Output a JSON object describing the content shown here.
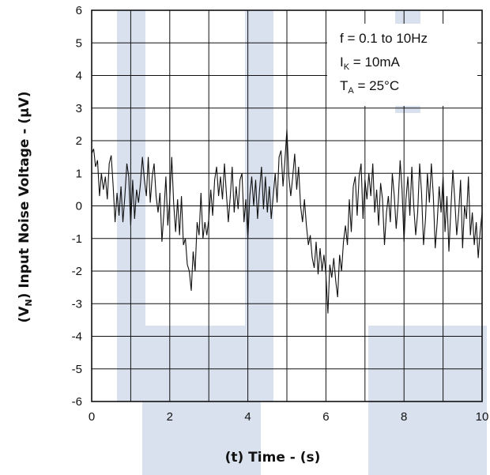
{
  "chart_data": {
    "type": "line",
    "title": "",
    "xlabel": "(t)  Time - (s)",
    "ylabel": {
      "prefix": "(V",
      "subscript": "N",
      "rest": ")  Input Noise Voltage - (µV)"
    },
    "xlim": [
      0,
      10
    ],
    "ylim": [
      -6,
      6
    ],
    "x_ticks": [
      "0",
      "2",
      "4",
      "6",
      "8",
      "10"
    ],
    "y_ticks": [
      "6",
      "5",
      "4",
      "3",
      "2",
      "1",
      "0",
      "-1",
      "-2",
      "-3",
      "-4",
      "-5",
      "-6"
    ],
    "grid": true,
    "legend_position": "top-right",
    "conditions": [
      {
        "main": "f = 0.1 to 10Hz",
        "sub": "",
        "rest": ""
      },
      {
        "main": "I",
        "sub": "K",
        "rest": " = 10mA"
      },
      {
        "main": "T",
        "sub": "A",
        "rest": " = 25°C"
      }
    ],
    "series": [
      {
        "points": [
          [
            0.0,
            1.6
          ],
          [
            0.05,
            1.75
          ],
          [
            0.1,
            1.2
          ],
          [
            0.15,
            1.4
          ],
          [
            0.2,
            0.3
          ],
          [
            0.25,
            1.0
          ],
          [
            0.3,
            0.5
          ],
          [
            0.35,
            0.9
          ],
          [
            0.4,
            0.2
          ],
          [
            0.45,
            1.3
          ],
          [
            0.5,
            1.55
          ],
          [
            0.55,
            0.6
          ],
          [
            0.6,
            -0.5
          ],
          [
            0.65,
            0.4
          ],
          [
            0.7,
            -0.3
          ],
          [
            0.75,
            0.6
          ],
          [
            0.8,
            -0.5
          ],
          [
            0.85,
            0.3
          ],
          [
            0.9,
            1.3
          ],
          [
            0.95,
            0.9
          ],
          [
            1.0,
            -0.6
          ],
          [
            1.05,
            0.8
          ],
          [
            1.1,
            -0.4
          ],
          [
            1.15,
            0.5
          ],
          [
            1.2,
            0.1
          ],
          [
            1.25,
            0.7
          ],
          [
            1.3,
            1.5
          ],
          [
            1.35,
            0.8
          ],
          [
            1.4,
            0.3
          ],
          [
            1.45,
            1.5
          ],
          [
            1.5,
            0.1
          ],
          [
            1.55,
            0.9
          ],
          [
            1.6,
            1.3
          ],
          [
            1.65,
            0.3
          ],
          [
            1.7,
            -0.2
          ],
          [
            1.75,
            0.4
          ],
          [
            1.8,
            -1.1
          ],
          [
            1.85,
            -0.2
          ],
          [
            1.9,
            0.9
          ],
          [
            1.95,
            -0.6
          ],
          [
            2.0,
            0.2
          ],
          [
            2.05,
            1.5
          ],
          [
            2.1,
            0.1
          ],
          [
            2.15,
            -0.8
          ],
          [
            2.2,
            0.2
          ],
          [
            2.25,
            -0.9
          ],
          [
            2.3,
            0.3
          ],
          [
            2.35,
            -1.2
          ],
          [
            2.4,
            -1.0
          ],
          [
            2.45,
            -1.8
          ],
          [
            2.5,
            -2.0
          ],
          [
            2.55,
            -2.6
          ],
          [
            2.6,
            -1.4
          ],
          [
            2.65,
            -2.0
          ],
          [
            2.7,
            -0.5
          ],
          [
            2.75,
            -0.9
          ],
          [
            2.8,
            0.4
          ],
          [
            2.85,
            -1.0
          ],
          [
            2.9,
            -0.5
          ],
          [
            2.95,
            -0.9
          ],
          [
            3.0,
            -0.4
          ],
          [
            3.05,
            0.5
          ],
          [
            3.1,
            -0.3
          ],
          [
            3.15,
            0.8
          ],
          [
            3.2,
            1.2
          ],
          [
            3.25,
            0.3
          ],
          [
            3.3,
            0.9
          ],
          [
            3.35,
            0.2
          ],
          [
            3.4,
            1.3
          ],
          [
            3.45,
            0.4
          ],
          [
            3.5,
            -0.5
          ],
          [
            3.55,
            0.3
          ],
          [
            3.6,
            1.2
          ],
          [
            3.65,
            -0.2
          ],
          [
            3.7,
            0.6
          ],
          [
            3.75,
            -0.1
          ],
          [
            3.8,
            0.8
          ],
          [
            3.85,
            1.0
          ],
          [
            3.9,
            -0.5
          ],
          [
            3.95,
            0.2
          ],
          [
            4.0,
            -1.0
          ],
          [
            4.05,
            0.3
          ],
          [
            4.1,
            0.9
          ],
          [
            4.15,
            0.0
          ],
          [
            4.2,
            0.8
          ],
          [
            4.25,
            -0.4
          ],
          [
            4.3,
            0.5
          ],
          [
            4.35,
            1.2
          ],
          [
            4.4,
            -0.1
          ],
          [
            4.45,
            0.9
          ],
          [
            4.5,
            -0.2
          ],
          [
            4.55,
            0.6
          ],
          [
            4.6,
            -0.4
          ],
          [
            4.65,
            0.3
          ],
          [
            4.7,
            1.0
          ],
          [
            4.75,
            0.1
          ],
          [
            4.8,
            1.5
          ],
          [
            4.85,
            1.7
          ],
          [
            4.9,
            0.6
          ],
          [
            4.95,
            1.4
          ],
          [
            5.0,
            2.35
          ],
          [
            5.05,
            0.9
          ],
          [
            5.1,
            0.3
          ],
          [
            5.15,
            0.9
          ],
          [
            5.2,
            1.6
          ],
          [
            5.25,
            0.5
          ],
          [
            5.3,
            1.2
          ],
          [
            5.35,
            0.0
          ],
          [
            5.4,
            -0.5
          ],
          [
            5.45,
            0.2
          ],
          [
            5.5,
            -0.6
          ],
          [
            5.55,
            -1.2
          ],
          [
            5.6,
            -0.9
          ],
          [
            5.65,
            -1.6
          ],
          [
            5.7,
            -1.9
          ],
          [
            5.75,
            -1.1
          ],
          [
            5.8,
            -2.1
          ],
          [
            5.85,
            -1.3
          ],
          [
            5.9,
            -2.0
          ],
          [
            5.95,
            -1.5
          ],
          [
            6.0,
            -2.1
          ],
          [
            6.05,
            -3.3
          ],
          [
            6.1,
            -1.8
          ],
          [
            6.15,
            -2.2
          ],
          [
            6.2,
            -1.6
          ],
          [
            6.25,
            -2.3
          ],
          [
            6.3,
            -2.8
          ],
          [
            6.35,
            -1.5
          ],
          [
            6.4,
            -2.0
          ],
          [
            6.45,
            -1.1
          ],
          [
            6.5,
            -0.6
          ],
          [
            6.55,
            -1.2
          ],
          [
            6.6,
            0.2
          ],
          [
            6.65,
            -0.8
          ],
          [
            6.7,
            0.6
          ],
          [
            6.75,
            0.9
          ],
          [
            6.8,
            -0.3
          ],
          [
            6.85,
            0.9
          ],
          [
            6.9,
            1.3
          ],
          [
            6.95,
            -0.4
          ],
          [
            7.0,
            0.8
          ],
          [
            7.05,
            0.2
          ],
          [
            7.1,
            1.0
          ],
          [
            7.15,
            0.3
          ],
          [
            7.2,
            1.3
          ],
          [
            7.25,
            -0.2
          ],
          [
            7.3,
            0.5
          ],
          [
            7.35,
            -0.6
          ],
          [
            7.4,
            0.7
          ],
          [
            7.45,
            0.2
          ],
          [
            7.5,
            -1.2
          ],
          [
            7.55,
            -0.2
          ],
          [
            7.6,
            0.3
          ],
          [
            7.65,
            -0.5
          ],
          [
            7.7,
            1.0
          ],
          [
            7.75,
            0.3
          ],
          [
            7.8,
            -0.7
          ],
          [
            7.85,
            0.1
          ],
          [
            7.9,
            1.4
          ],
          [
            7.95,
            0.5
          ],
          [
            8.0,
            -1.1
          ],
          [
            8.05,
            0.2
          ],
          [
            8.1,
            0.9
          ],
          [
            8.15,
            -0.3
          ],
          [
            8.2,
            1.2
          ],
          [
            8.25,
            0.0
          ],
          [
            8.3,
            -0.9
          ],
          [
            8.35,
            -0.2
          ],
          [
            8.4,
            1.3
          ],
          [
            8.45,
            0.4
          ],
          [
            8.5,
            -1.2
          ],
          [
            8.55,
            -0.4
          ],
          [
            8.6,
            1.0
          ],
          [
            8.65,
            0.1
          ],
          [
            8.7,
            1.3
          ],
          [
            8.75,
            0.3
          ],
          [
            8.8,
            -1.3
          ],
          [
            8.85,
            -0.5
          ],
          [
            8.9,
            0.6
          ],
          [
            8.95,
            -0.2
          ],
          [
            9.0,
            0.9
          ],
          [
            9.05,
            -0.8
          ],
          [
            9.1,
            0.3
          ],
          [
            9.15,
            -1.4
          ],
          [
            9.2,
            -0.1
          ],
          [
            9.25,
            1.1
          ],
          [
            9.3,
            0.2
          ],
          [
            9.35,
            -0.9
          ],
          [
            9.4,
            -0.2
          ],
          [
            9.45,
            0.8
          ],
          [
            9.5,
            -1.3
          ],
          [
            9.55,
            0.0
          ],
          [
            9.6,
            -0.4
          ],
          [
            9.65,
            0.9
          ],
          [
            9.7,
            -0.9
          ],
          [
            9.75,
            -0.2
          ],
          [
            9.8,
            -1.2
          ],
          [
            9.85,
            -0.5
          ],
          [
            9.9,
            -1.6
          ],
          [
            9.95,
            -0.8
          ],
          [
            10.0,
            -0.2
          ]
        ]
      }
    ],
    "colors": {
      "line": "#111111",
      "grid": "#111111",
      "watermark": "#d9e1ee"
    }
  }
}
